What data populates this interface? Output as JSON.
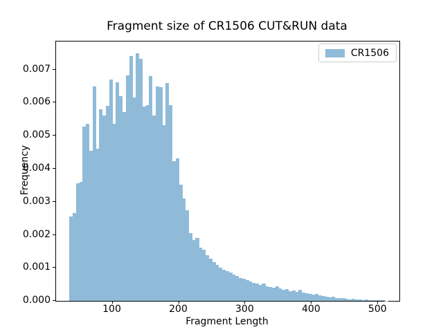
{
  "chart_data": {
    "type": "bar",
    "subtype": "histogram",
    "title": "Fragment size of CR1506 CUT&RUN data",
    "xlabel": "Fragment Length",
    "ylabel": "Frequency",
    "series_name": "CR1506",
    "bar_color": "#8FBBD9",
    "grid": false,
    "xlim": [
      15,
      532
    ],
    "ylim": [
      0,
      0.00785
    ],
    "bin_width": 5,
    "bin_starts": [
      35,
      40,
      45,
      50,
      55,
      60,
      65,
      70,
      75,
      80,
      85,
      90,
      95,
      100,
      105,
      110,
      115,
      120,
      125,
      130,
      135,
      140,
      145,
      150,
      155,
      160,
      165,
      170,
      175,
      180,
      185,
      190,
      195,
      200,
      205,
      210,
      215,
      220,
      225,
      230,
      235,
      240,
      245,
      250,
      255,
      260,
      265,
      270,
      275,
      280,
      285,
      290,
      295,
      300,
      305,
      310,
      315,
      320,
      325,
      330,
      335,
      340,
      345,
      350,
      355,
      360,
      365,
      370,
      375,
      380,
      385,
      390,
      395,
      400,
      405,
      410,
      415,
      420,
      425,
      430,
      435,
      440,
      445,
      450,
      455,
      460,
      465,
      470,
      475,
      480,
      485,
      490,
      495,
      500,
      505,
      510
    ],
    "frequencies": [
      0.00255,
      0.00265,
      0.00355,
      0.0036,
      0.00528,
      0.00536,
      0.00455,
      0.00648,
      0.0046,
      0.0058,
      0.00562,
      0.0059,
      0.0067,
      0.00535,
      0.00662,
      0.0062,
      0.00572,
      0.00682,
      0.00742,
      0.00615,
      0.0075,
      0.00732,
      0.00588,
      0.00592,
      0.0068,
      0.00562,
      0.0065,
      0.00646,
      0.00532,
      0.0066,
      0.00592,
      0.00422,
      0.00432,
      0.00352,
      0.0031,
      0.00275,
      0.00205,
      0.00185,
      0.0019,
      0.00162,
      0.00155,
      0.00138,
      0.00128,
      0.00118,
      0.00108,
      0.001,
      0.00095,
      0.0009,
      0.00085,
      0.0008,
      0.00075,
      0.0007,
      0.00066,
      0.00062,
      0.00058,
      0.00055,
      0.00052,
      0.00048,
      0.00052,
      0.00045,
      0.00042,
      0.0004,
      0.00044,
      0.00038,
      0.00034,
      0.00036,
      0.0003,
      0.00032,
      0.00028,
      0.00033,
      0.00026,
      0.00023,
      0.0002,
      0.00018,
      0.00021,
      0.00016,
      0.00014,
      0.00012,
      0.0001,
      0.00013,
      9e-05,
      8e-05,
      9e-05,
      6e-05,
      5e-05,
      6e-05,
      4e-05,
      5e-05,
      3e-05,
      4e-05,
      3e-05,
      2e-05,
      3e-05,
      2e-05,
      2e-05,
      1e-05
    ],
    "xticks": [
      {
        "label": "100",
        "value": 100
      },
      {
        "label": "200",
        "value": 200
      },
      {
        "label": "300",
        "value": 300
      },
      {
        "label": "400",
        "value": 400
      },
      {
        "label": "500",
        "value": 500
      }
    ],
    "yticks": [
      {
        "label": "0.000",
        "value": 0.0
      },
      {
        "label": "0.001",
        "value": 0.001
      },
      {
        "label": "0.002",
        "value": 0.002
      },
      {
        "label": "0.003",
        "value": 0.003
      },
      {
        "label": "0.004",
        "value": 0.004
      },
      {
        "label": "0.005",
        "value": 0.005
      },
      {
        "label": "0.006",
        "value": 0.006
      },
      {
        "label": "0.007",
        "value": 0.007
      }
    ],
    "legend": {
      "label": "CR1506",
      "position": "upper-right",
      "swatch_color": "#8FBBD9"
    }
  }
}
